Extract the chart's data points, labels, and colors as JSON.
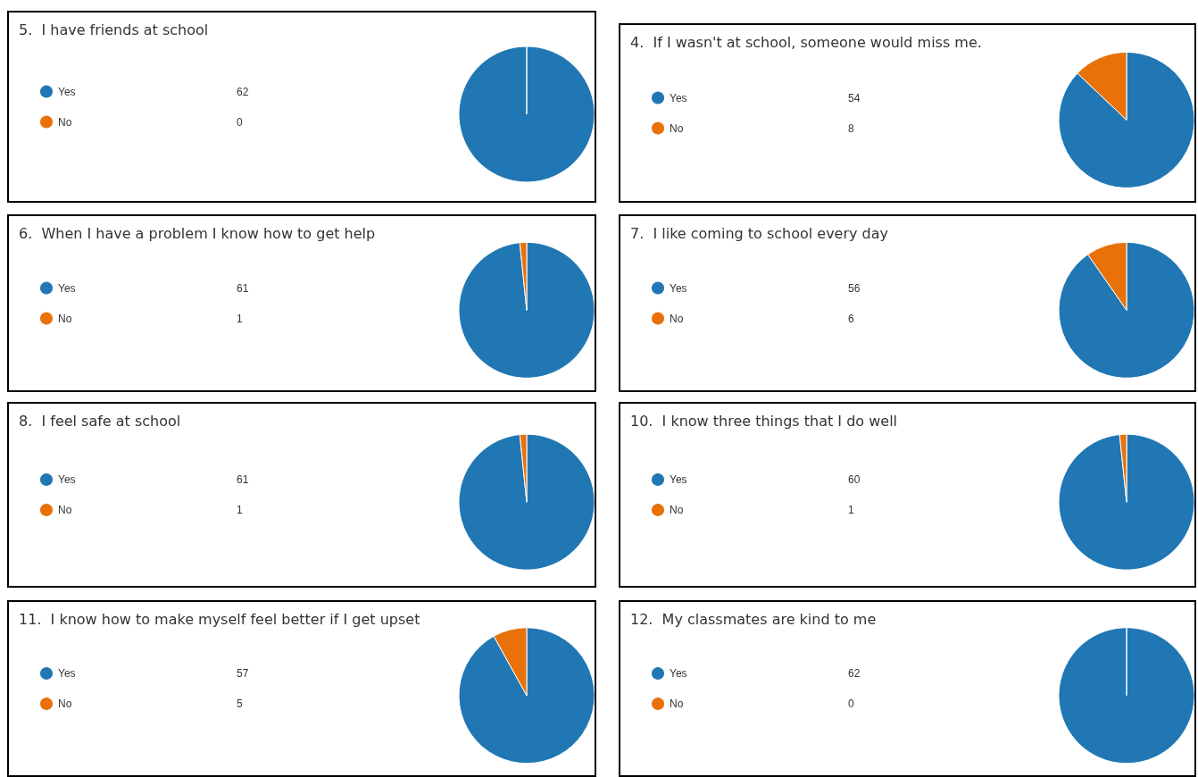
{
  "chart_data": [
    {
      "type": "pie",
      "title": "5.  I have friends at school",
      "categories": [
        "Yes",
        "No"
      ],
      "values": [
        62,
        0
      ],
      "value_labels": [
        "62",
        "0"
      ],
      "colors": [
        "#2077b4",
        "#e8710a"
      ],
      "legend": "left"
    },
    {
      "type": "pie",
      "title": "4.  If I wasn't at school, someone would miss me.",
      "categories": [
        "Yes",
        "No"
      ],
      "values": [
        54,
        8
      ],
      "value_labels": [
        "54",
        "8"
      ],
      "colors": [
        "#2077b4",
        "#e8710a"
      ],
      "legend": "left"
    },
    {
      "type": "pie",
      "title": "6.  When I have a problem I know how to get help",
      "categories": [
        "Yes",
        "No"
      ],
      "values": [
        61,
        1
      ],
      "value_labels": [
        "61",
        "1"
      ],
      "colors": [
        "#2077b4",
        "#e8710a"
      ],
      "legend": "left"
    },
    {
      "type": "pie",
      "title": "7.  I like coming to school every day",
      "categories": [
        "Yes",
        "No"
      ],
      "values": [
        56,
        6
      ],
      "value_labels": [
        "56",
        "6"
      ],
      "colors": [
        "#2077b4",
        "#e8710a"
      ],
      "legend": "left"
    },
    {
      "type": "pie",
      "title": "8.  I feel safe at school",
      "categories": [
        "Yes",
        "No"
      ],
      "values": [
        61,
        1
      ],
      "value_labels": [
        "61",
        "1"
      ],
      "colors": [
        "#2077b4",
        "#e8710a"
      ],
      "legend": "left"
    },
    {
      "type": "pie",
      "title": "10.  I know three things that I do well",
      "categories": [
        "Yes",
        "No"
      ],
      "values": [
        60,
        1
      ],
      "value_labels": [
        "60",
        "1"
      ],
      "colors": [
        "#2077b4",
        "#e8710a"
      ],
      "legend": "left"
    },
    {
      "type": "pie",
      "title": "11.  I know how to make myself feel better if I get upset",
      "categories": [
        "Yes",
        "No"
      ],
      "values": [
        57,
        5
      ],
      "value_labels": [
        "57",
        "5"
      ],
      "colors": [
        "#2077b4",
        "#e8710a"
      ],
      "legend": "left"
    },
    {
      "type": "pie",
      "title": "12.  My classmates are kind to me",
      "categories": [
        "Yes",
        "No"
      ],
      "values": [
        62,
        0
      ],
      "value_labels": [
        "62",
        "0"
      ],
      "colors": [
        "#2077b4",
        "#e8710a"
      ],
      "legend": "left"
    }
  ]
}
